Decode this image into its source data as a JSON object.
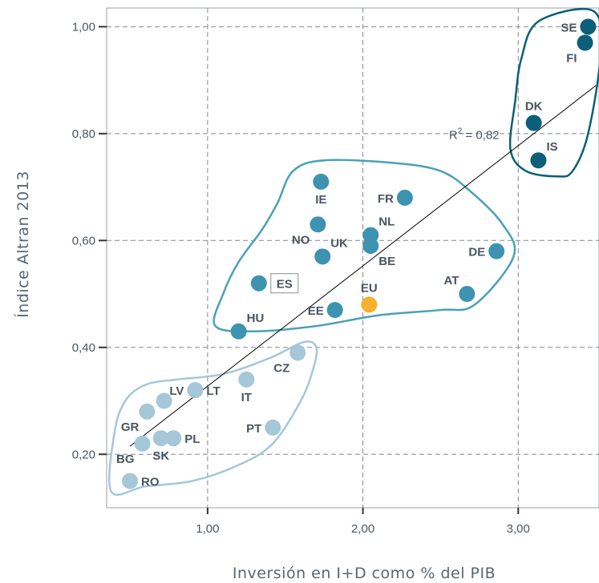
{
  "chart_data": {
    "type": "scatter",
    "xlabel": "Inversión en I+D como % del PIB",
    "ylabel": "Índice Altran 2013",
    "xlim": [
      0.35,
      3.52
    ],
    "ylim": [
      0.1,
      1.035
    ],
    "x_ticks": [
      {
        "value": 1.0,
        "label": "1,00"
      },
      {
        "value": 2.0,
        "label": "2,00"
      },
      {
        "value": 3.0,
        "label": "3,00"
      }
    ],
    "y_ticks": [
      {
        "value": 0.2,
        "label": "0,20"
      },
      {
        "value": 0.4,
        "label": "0,40"
      },
      {
        "value": 0.6,
        "label": "0,60"
      },
      {
        "value": 0.8,
        "label": "0,80"
      },
      {
        "value": 1.0,
        "label": "1,00"
      }
    ],
    "grid": true,
    "colors": {
      "group1": "#0b5f78",
      "group2": "#3d93b0",
      "group3": "#a6c7d8",
      "eu": "#f9b02e",
      "outline1": "#0b5f78",
      "outline2": "#4aa0b8",
      "outline3": "#a6c7d8",
      "label": "#4a5560"
    },
    "points": [
      {
        "label": "SE",
        "x": 3.45,
        "y": 1.0,
        "group": 1,
        "lpos": "left"
      },
      {
        "label": "FI",
        "x": 3.43,
        "y": 0.97,
        "group": 1,
        "lpos": "below-left"
      },
      {
        "label": "DK",
        "x": 3.1,
        "y": 0.82,
        "group": 1,
        "lpos": "above"
      },
      {
        "label": "IS",
        "x": 3.13,
        "y": 0.75,
        "group": 1,
        "lpos": "above-right"
      },
      {
        "label": "IE",
        "x": 1.73,
        "y": 0.71,
        "group": 2,
        "lpos": "below"
      },
      {
        "label": "FR",
        "x": 2.27,
        "y": 0.68,
        "group": 2,
        "lpos": "left"
      },
      {
        "label": "NO",
        "x": 1.71,
        "y": 0.63,
        "group": 2,
        "lpos": "below-left"
      },
      {
        "label": "NL",
        "x": 2.05,
        "y": 0.61,
        "group": 2,
        "lpos": "above-right"
      },
      {
        "label": "BE",
        "x": 2.05,
        "y": 0.59,
        "group": 2,
        "lpos": "below-right"
      },
      {
        "label": "UK",
        "x": 1.74,
        "y": 0.57,
        "group": 2,
        "lpos": "above-right"
      },
      {
        "label": "DE",
        "x": 2.86,
        "y": 0.58,
        "group": 2,
        "lpos": "left"
      },
      {
        "label": "ES",
        "x": 1.33,
        "y": 0.52,
        "group": 2,
        "lpos": "boxed-right"
      },
      {
        "label": "AT",
        "x": 2.67,
        "y": 0.5,
        "group": 2,
        "lpos": "above-left"
      },
      {
        "label": "EE",
        "x": 1.82,
        "y": 0.47,
        "group": 2,
        "lpos": "left"
      },
      {
        "label": "HU",
        "x": 1.2,
        "y": 0.43,
        "group": 2,
        "lpos": "above-right"
      },
      {
        "label": "EU",
        "x": 2.04,
        "y": 0.48,
        "group": 4,
        "lpos": "above"
      },
      {
        "label": "CZ",
        "x": 1.58,
        "y": 0.39,
        "group": 3,
        "lpos": "below-left"
      },
      {
        "label": "LV",
        "x": 0.92,
        "y": 0.32,
        "group": 3,
        "lpos": "left"
      },
      {
        "label": "LT",
        "x": 0.92,
        "y": 0.32,
        "group": 3,
        "lpos": "right"
      },
      {
        "label": "IT",
        "x": 1.25,
        "y": 0.34,
        "group": 3,
        "lpos": "below"
      },
      {
        "label": "GR",
        "x": 0.61,
        "y": 0.28,
        "group": 3,
        "lpos": "below-left"
      },
      {
        "label": "PT",
        "x": 1.42,
        "y": 0.25,
        "group": 3,
        "lpos": "left"
      },
      {
        "label": "PL",
        "x": 0.78,
        "y": 0.23,
        "group": 3,
        "lpos": "right"
      },
      {
        "label": "SK",
        "x": 0.7,
        "y": 0.23,
        "group": 3,
        "lpos": "below"
      },
      {
        "label": "BG",
        "x": 0.58,
        "y": 0.22,
        "group": 3,
        "lpos": "below-left"
      },
      {
        "label": "RO",
        "x": 0.5,
        "y": 0.15,
        "group": 3,
        "lpos": "right"
      }
    ],
    "extra_points": [
      {
        "x": 0.72,
        "y": 0.3,
        "group": 3
      }
    ],
    "trendline": {
      "x1": 0.5,
      "y1": 0.215,
      "x2": 3.5,
      "y2": 0.89
    },
    "r2": {
      "text": "R",
      "sup": "2",
      "value_text": " = 0,82",
      "x": 2.75,
      "y": 0.79
    },
    "clusters": [
      {
        "group": 1,
        "outline": [
          [
            2.95,
            0.77
          ],
          [
            2.98,
            0.86
          ],
          [
            3.02,
            0.94
          ],
          [
            3.13,
            1.01
          ],
          [
            3.48,
            1.03
          ],
          [
            3.53,
            0.95
          ],
          [
            3.45,
            0.8
          ],
          [
            3.35,
            0.73
          ],
          [
            3.25,
            0.72
          ],
          [
            3.05,
            0.73
          ]
        ]
      },
      {
        "group": 2,
        "outline": [
          [
            1.05,
            0.44
          ],
          [
            1.3,
            0.43
          ],
          [
            1.7,
            0.44
          ],
          [
            2.1,
            0.46
          ],
          [
            2.5,
            0.47
          ],
          [
            2.72,
            0.48
          ],
          [
            2.97,
            0.57
          ],
          [
            2.9,
            0.63
          ],
          [
            2.7,
            0.69
          ],
          [
            2.5,
            0.73
          ],
          [
            2.2,
            0.745
          ],
          [
            1.75,
            0.75
          ],
          [
            1.55,
            0.73
          ],
          [
            1.45,
            0.67
          ],
          [
            1.35,
            0.62
          ],
          [
            1.2,
            0.56
          ],
          [
            1.1,
            0.5
          ]
        ]
      },
      {
        "group": 3,
        "outline": [
          [
            0.38,
            0.13
          ],
          [
            0.6,
            0.14
          ],
          [
            0.9,
            0.15
          ],
          [
            1.2,
            0.18
          ],
          [
            1.42,
            0.22
          ],
          [
            1.6,
            0.3
          ],
          [
            1.68,
            0.36
          ],
          [
            1.7,
            0.4
          ],
          [
            1.62,
            0.41
          ],
          [
            1.4,
            0.38
          ],
          [
            1.1,
            0.35
          ],
          [
            0.8,
            0.34
          ],
          [
            0.6,
            0.33
          ],
          [
            0.47,
            0.3
          ],
          [
            0.4,
            0.24
          ]
        ]
      }
    ]
  }
}
